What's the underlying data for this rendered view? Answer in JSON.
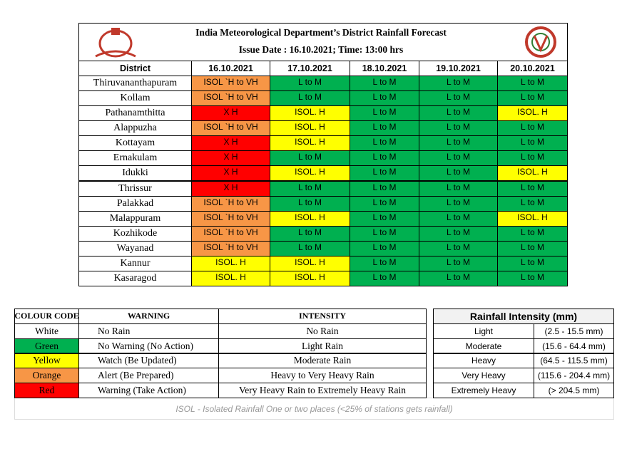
{
  "header": {
    "title": "India Meteorological Department’s District Rainfall Forecast",
    "issue": "Issue Date : 16.10.2021;  Time: 13:00 hrs"
  },
  "table": {
    "headers": [
      "District",
      "16.10.2021",
      "17.10.2021",
      "18.10.2021",
      "19.10.2021",
      "20.10.2021"
    ],
    "rows": [
      {
        "district": "Thiruvananthapuram",
        "cells": [
          {
            "text": "ISOL `H to VH",
            "color": "#f79646"
          },
          {
            "text": "L to M",
            "color": "#00b050"
          },
          {
            "text": "L to M",
            "color": "#00b050"
          },
          {
            "text": "L to M",
            "color": "#00b050"
          },
          {
            "text": "L to M",
            "color": "#00b050"
          }
        ]
      },
      {
        "district": "Kollam",
        "cells": [
          {
            "text": "ISOL `H to VH",
            "color": "#f79646"
          },
          {
            "text": "L to M",
            "color": "#00b050"
          },
          {
            "text": "L to M",
            "color": "#00b050"
          },
          {
            "text": "L to M",
            "color": "#00b050"
          },
          {
            "text": "L to M",
            "color": "#00b050"
          }
        ]
      },
      {
        "district": "Pathanamthitta",
        "cells": [
          {
            "text": "X H",
            "color": "#ff0000"
          },
          {
            "text": "ISOL. H",
            "color": "#ffff00"
          },
          {
            "text": "L to M",
            "color": "#00b050"
          },
          {
            "text": "L to M",
            "color": "#00b050"
          },
          {
            "text": "ISOL. H",
            "color": "#ffff00"
          }
        ]
      },
      {
        "district": "Alappuzha",
        "cells": [
          {
            "text": "ISOL `H to VH",
            "color": "#f79646"
          },
          {
            "text": "ISOL. H",
            "color": "#ffff00"
          },
          {
            "text": "L to M",
            "color": "#00b050"
          },
          {
            "text": "L to M",
            "color": "#00b050"
          },
          {
            "text": "L to M",
            "color": "#00b050"
          }
        ]
      },
      {
        "district": "Kottayam",
        "cells": [
          {
            "text": "X H",
            "color": "#ff0000"
          },
          {
            "text": "ISOL. H",
            "color": "#ffff00"
          },
          {
            "text": "L to M",
            "color": "#00b050"
          },
          {
            "text": "L to M",
            "color": "#00b050"
          },
          {
            "text": "L to M",
            "color": "#00b050"
          }
        ]
      },
      {
        "district": "Ernakulam",
        "cells": [
          {
            "text": "X H",
            "color": "#ff0000"
          },
          {
            "text": "L to M",
            "color": "#00b050"
          },
          {
            "text": "L to M",
            "color": "#00b050"
          },
          {
            "text": "L to M",
            "color": "#00b050"
          },
          {
            "text": "L to M",
            "color": "#00b050"
          }
        ]
      },
      {
        "district": "Idukki",
        "cells": [
          {
            "text": "X H",
            "color": "#ff0000"
          },
          {
            "text": "ISOL. H",
            "color": "#ffff00"
          },
          {
            "text": "L to M",
            "color": "#00b050"
          },
          {
            "text": "L to M",
            "color": "#00b050"
          },
          {
            "text": "ISOL. H",
            "color": "#ffff00"
          }
        ]
      },
      {
        "district": "Thrissur",
        "cells": [
          {
            "text": "X H",
            "color": "#ff0000"
          },
          {
            "text": "L to M",
            "color": "#00b050"
          },
          {
            "text": "L to M",
            "color": "#00b050"
          },
          {
            "text": "L to M",
            "color": "#00b050"
          },
          {
            "text": "L to M",
            "color": "#00b050"
          }
        ]
      },
      {
        "district": "Palakkad",
        "cells": [
          {
            "text": "ISOL `H to VH",
            "color": "#f79646"
          },
          {
            "text": "L to M",
            "color": "#00b050"
          },
          {
            "text": "L to M",
            "color": "#00b050"
          },
          {
            "text": "L to M",
            "color": "#00b050"
          },
          {
            "text": "L to M",
            "color": "#00b050"
          }
        ]
      },
      {
        "district": "Malappuram",
        "cells": [
          {
            "text": "ISOL `H to VH",
            "color": "#f79646"
          },
          {
            "text": "ISOL. H",
            "color": "#ffff00"
          },
          {
            "text": "L to M",
            "color": "#00b050"
          },
          {
            "text": "L to M",
            "color": "#00b050"
          },
          {
            "text": "ISOL. H",
            "color": "#ffff00"
          }
        ]
      },
      {
        "district": "Kozhikode",
        "cells": [
          {
            "text": "ISOL `H to VH",
            "color": "#f79646"
          },
          {
            "text": "L to M",
            "color": "#00b050"
          },
          {
            "text": "L to M",
            "color": "#00b050"
          },
          {
            "text": "L to M",
            "color": "#00b050"
          },
          {
            "text": "L to M",
            "color": "#00b050"
          }
        ]
      },
      {
        "district": "Wayanad",
        "cells": [
          {
            "text": "ISOL `H to VH",
            "color": "#f79646"
          },
          {
            "text": "L to M",
            "color": "#00b050"
          },
          {
            "text": "L to M",
            "color": "#00b050"
          },
          {
            "text": "L to M",
            "color": "#00b050"
          },
          {
            "text": "L to M",
            "color": "#00b050"
          }
        ]
      },
      {
        "district": "Kannur",
        "cells": [
          {
            "text": "ISOL. H",
            "color": "#ffff00"
          },
          {
            "text": "ISOL. H",
            "color": "#ffff00"
          },
          {
            "text": "L to M",
            "color": "#00b050"
          },
          {
            "text": "L to M",
            "color": "#00b050"
          },
          {
            "text": "L to M",
            "color": "#00b050"
          }
        ]
      },
      {
        "district": "Kasaragod",
        "cells": [
          {
            "text": "ISOL. H",
            "color": "#ffff00"
          },
          {
            "text": "ISOL. H",
            "color": "#ffff00"
          },
          {
            "text": "L to M",
            "color": "#00b050"
          },
          {
            "text": "L to M",
            "color": "#00b050"
          },
          {
            "text": "L to M",
            "color": "#00b050"
          }
        ]
      }
    ]
  },
  "legend": {
    "headers": [
      "COLOUR CODE",
      "WARNING",
      "INTENSITY"
    ],
    "rows": [
      {
        "code": "White",
        "color": "#ffffff",
        "warning": "No Rain",
        "intensity": "No Rain"
      },
      {
        "code": "Green",
        "color": "#00b050",
        "warning": "No Warning (No Action)",
        "intensity": "Light Rain"
      },
      {
        "code": "Yellow",
        "color": "#ffff00",
        "warning": "Watch (Be Updated)",
        "intensity": "Moderate Rain"
      },
      {
        "code": "Orange",
        "color": "#f79646",
        "warning": "Alert (Be Prepared)",
        "intensity": "Heavy to Very Heavy Rain"
      },
      {
        "code": "Red",
        "color": "#ff0000",
        "warning": "Warning (Take Action)",
        "intensity": "Very Heavy Rain to Extremely Heavy Rain"
      }
    ]
  },
  "intensity": {
    "title": "Rainfall Intensity (mm)",
    "rows": [
      {
        "name": "Light",
        "range": "(2.5 - 15.5 mm)"
      },
      {
        "name": "Moderate",
        "range": "(15.6 - 64.4 mm)"
      },
      {
        "name": "Heavy",
        "range": "(64.5 - 115.5 mm)"
      },
      {
        "name": "Very Heavy",
        "range": "(115.6 - 204.4 mm)"
      },
      {
        "name": "Extremely Heavy",
        "range": "(> 204.5 mm)"
      }
    ]
  },
  "note": "ISOL - Isolated Rainfall One or two places (<25% of stations gets rainfall)"
}
